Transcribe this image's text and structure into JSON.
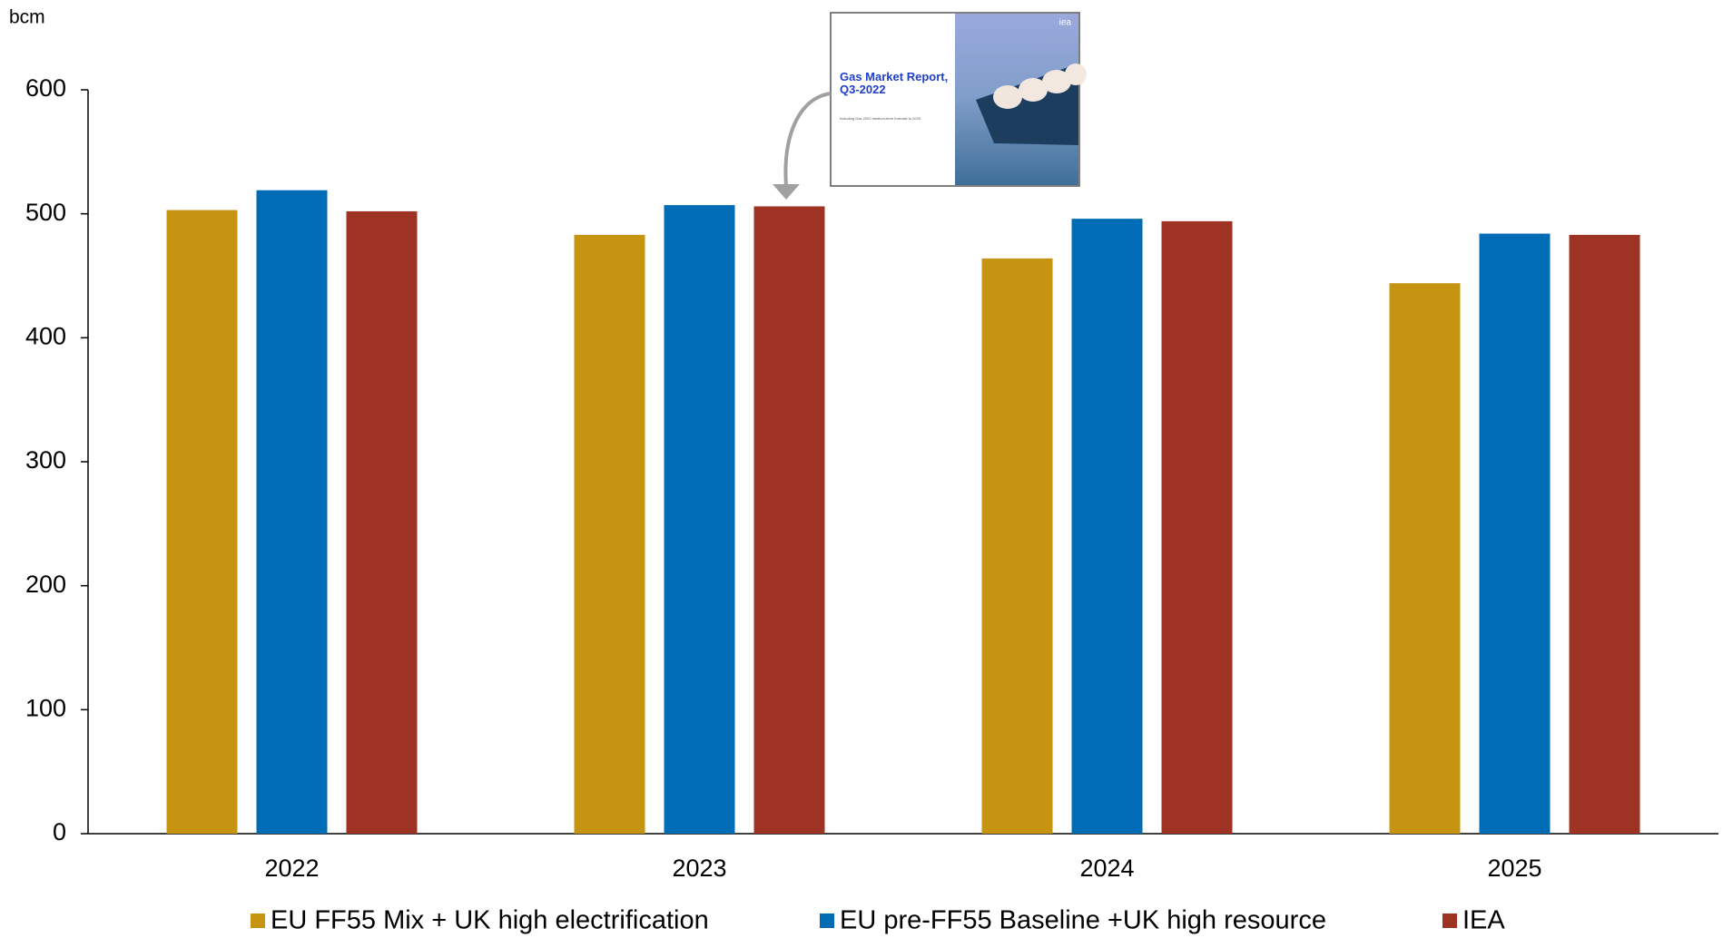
{
  "chart_data": {
    "type": "bar",
    "y_label": "bcm",
    "categories": [
      "2022",
      "2023",
      "2024",
      "2025"
    ],
    "series": [
      {
        "name": "EU FF55 Mix + UK high electrification",
        "color": "#c79411",
        "values": [
          503,
          483,
          464,
          444
        ]
      },
      {
        "name": "EU pre-FF55 Baseline +UK high resource",
        "color": "#006cb5",
        "values": [
          519,
          507,
          496,
          484
        ]
      },
      {
        "name": "IEA",
        "color": "#9e3223",
        "values": [
          502,
          506,
          494,
          483
        ]
      }
    ],
    "ylim": [
      0,
      600
    ],
    "yticks": [
      0,
      100,
      200,
      300,
      400,
      500,
      600
    ],
    "grid": false,
    "legend": "bottom",
    "annotation": {
      "logo": "iea",
      "title": "Gas Market Report, Q3-2022",
      "subtitle": "Including Gas 2022 medium-term forecast to 2025"
    }
  }
}
